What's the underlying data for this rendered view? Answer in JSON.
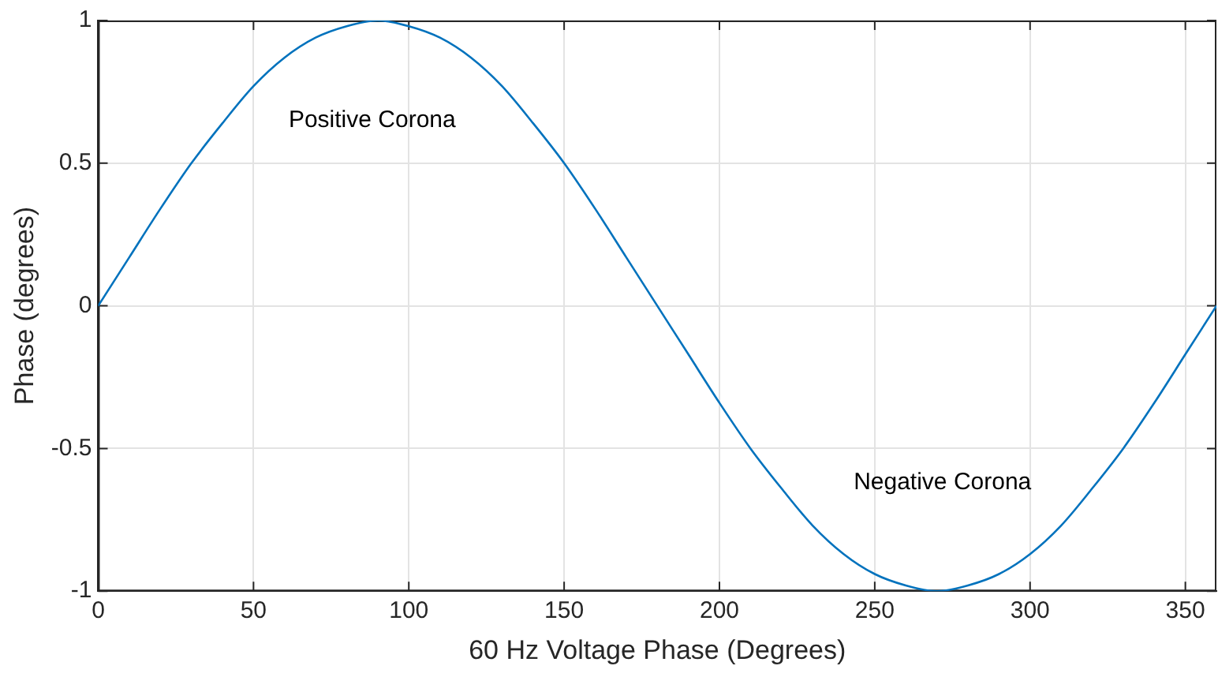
{
  "chart_data": {
    "type": "line",
    "xlabel": "60 Hz Voltage Phase (Degrees)",
    "ylabel": "Phase (degrees)",
    "x": [
      0,
      10,
      20,
      30,
      40,
      50,
      60,
      70,
      80,
      90,
      100,
      110,
      120,
      130,
      140,
      150,
      160,
      170,
      180,
      190,
      200,
      210,
      220,
      230,
      240,
      250,
      260,
      270,
      280,
      290,
      300,
      310,
      320,
      330,
      340,
      350,
      360
    ],
    "series": [
      {
        "color": "#0072bd",
        "values": [
          0,
          0.17,
          0.34,
          0.5,
          0.64,
          0.77,
          0.87,
          0.94,
          0.98,
          1,
          0.98,
          0.94,
          0.87,
          0.77,
          0.64,
          0.5,
          0.34,
          0.17,
          0,
          -0.17,
          -0.34,
          -0.5,
          -0.64,
          -0.77,
          -0.87,
          -0.94,
          -0.98,
          -1,
          -0.98,
          -0.94,
          -0.87,
          -0.77,
          -0.64,
          -0.5,
          -0.34,
          -0.17,
          0
        ]
      }
    ],
    "xlim": [
      0,
      360
    ],
    "xticks": [
      0,
      50,
      100,
      150,
      200,
      250,
      300,
      350
    ],
    "ylim": [
      -1,
      1
    ],
    "yticks": [
      -1,
      -0.5,
      0,
      0.5,
      1
    ],
    "grid": true,
    "legend": false,
    "marker": "none",
    "line_style": "solid",
    "annotations": [
      "Positive Corona",
      "Negative Corona"
    ]
  }
}
